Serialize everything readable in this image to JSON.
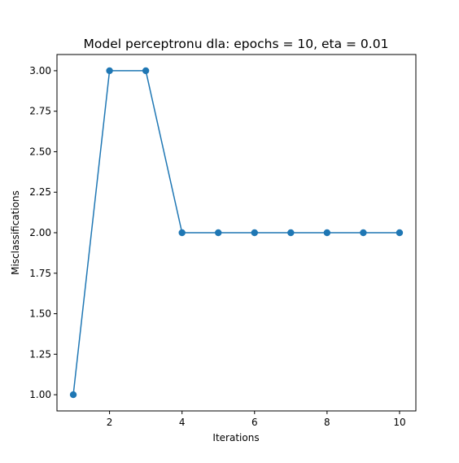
{
  "chart_data": {
    "type": "line",
    "title": "Model perceptronu dla: epochs = 10, eta = 0.01",
    "xlabel": "Iterations",
    "ylabel": "Misclassifications",
    "x": [
      1,
      2,
      3,
      4,
      5,
      6,
      7,
      8,
      9,
      10
    ],
    "series": [
      {
        "values": [
          1,
          3,
          3,
          2,
          2,
          2,
          2,
          2,
          2,
          2
        ],
        "color": "#1f77b4",
        "marker": "circle"
      }
    ],
    "xlim": [
      0.55,
      10.45
    ],
    "ylim": [
      0.9,
      3.1
    ],
    "xticks": [
      2,
      4,
      6,
      8,
      10
    ],
    "xtick_labels": [
      "2",
      "4",
      "6",
      "8",
      "10"
    ],
    "yticks": [
      1.0,
      1.25,
      1.5,
      1.75,
      2.0,
      2.25,
      2.5,
      2.75,
      3.0
    ],
    "ytick_labels": [
      "1.00",
      "1.25",
      "1.50",
      "1.75",
      "2.00",
      "2.25",
      "2.50",
      "2.75",
      "3.00"
    ],
    "grid": false,
    "legend": "none"
  }
}
